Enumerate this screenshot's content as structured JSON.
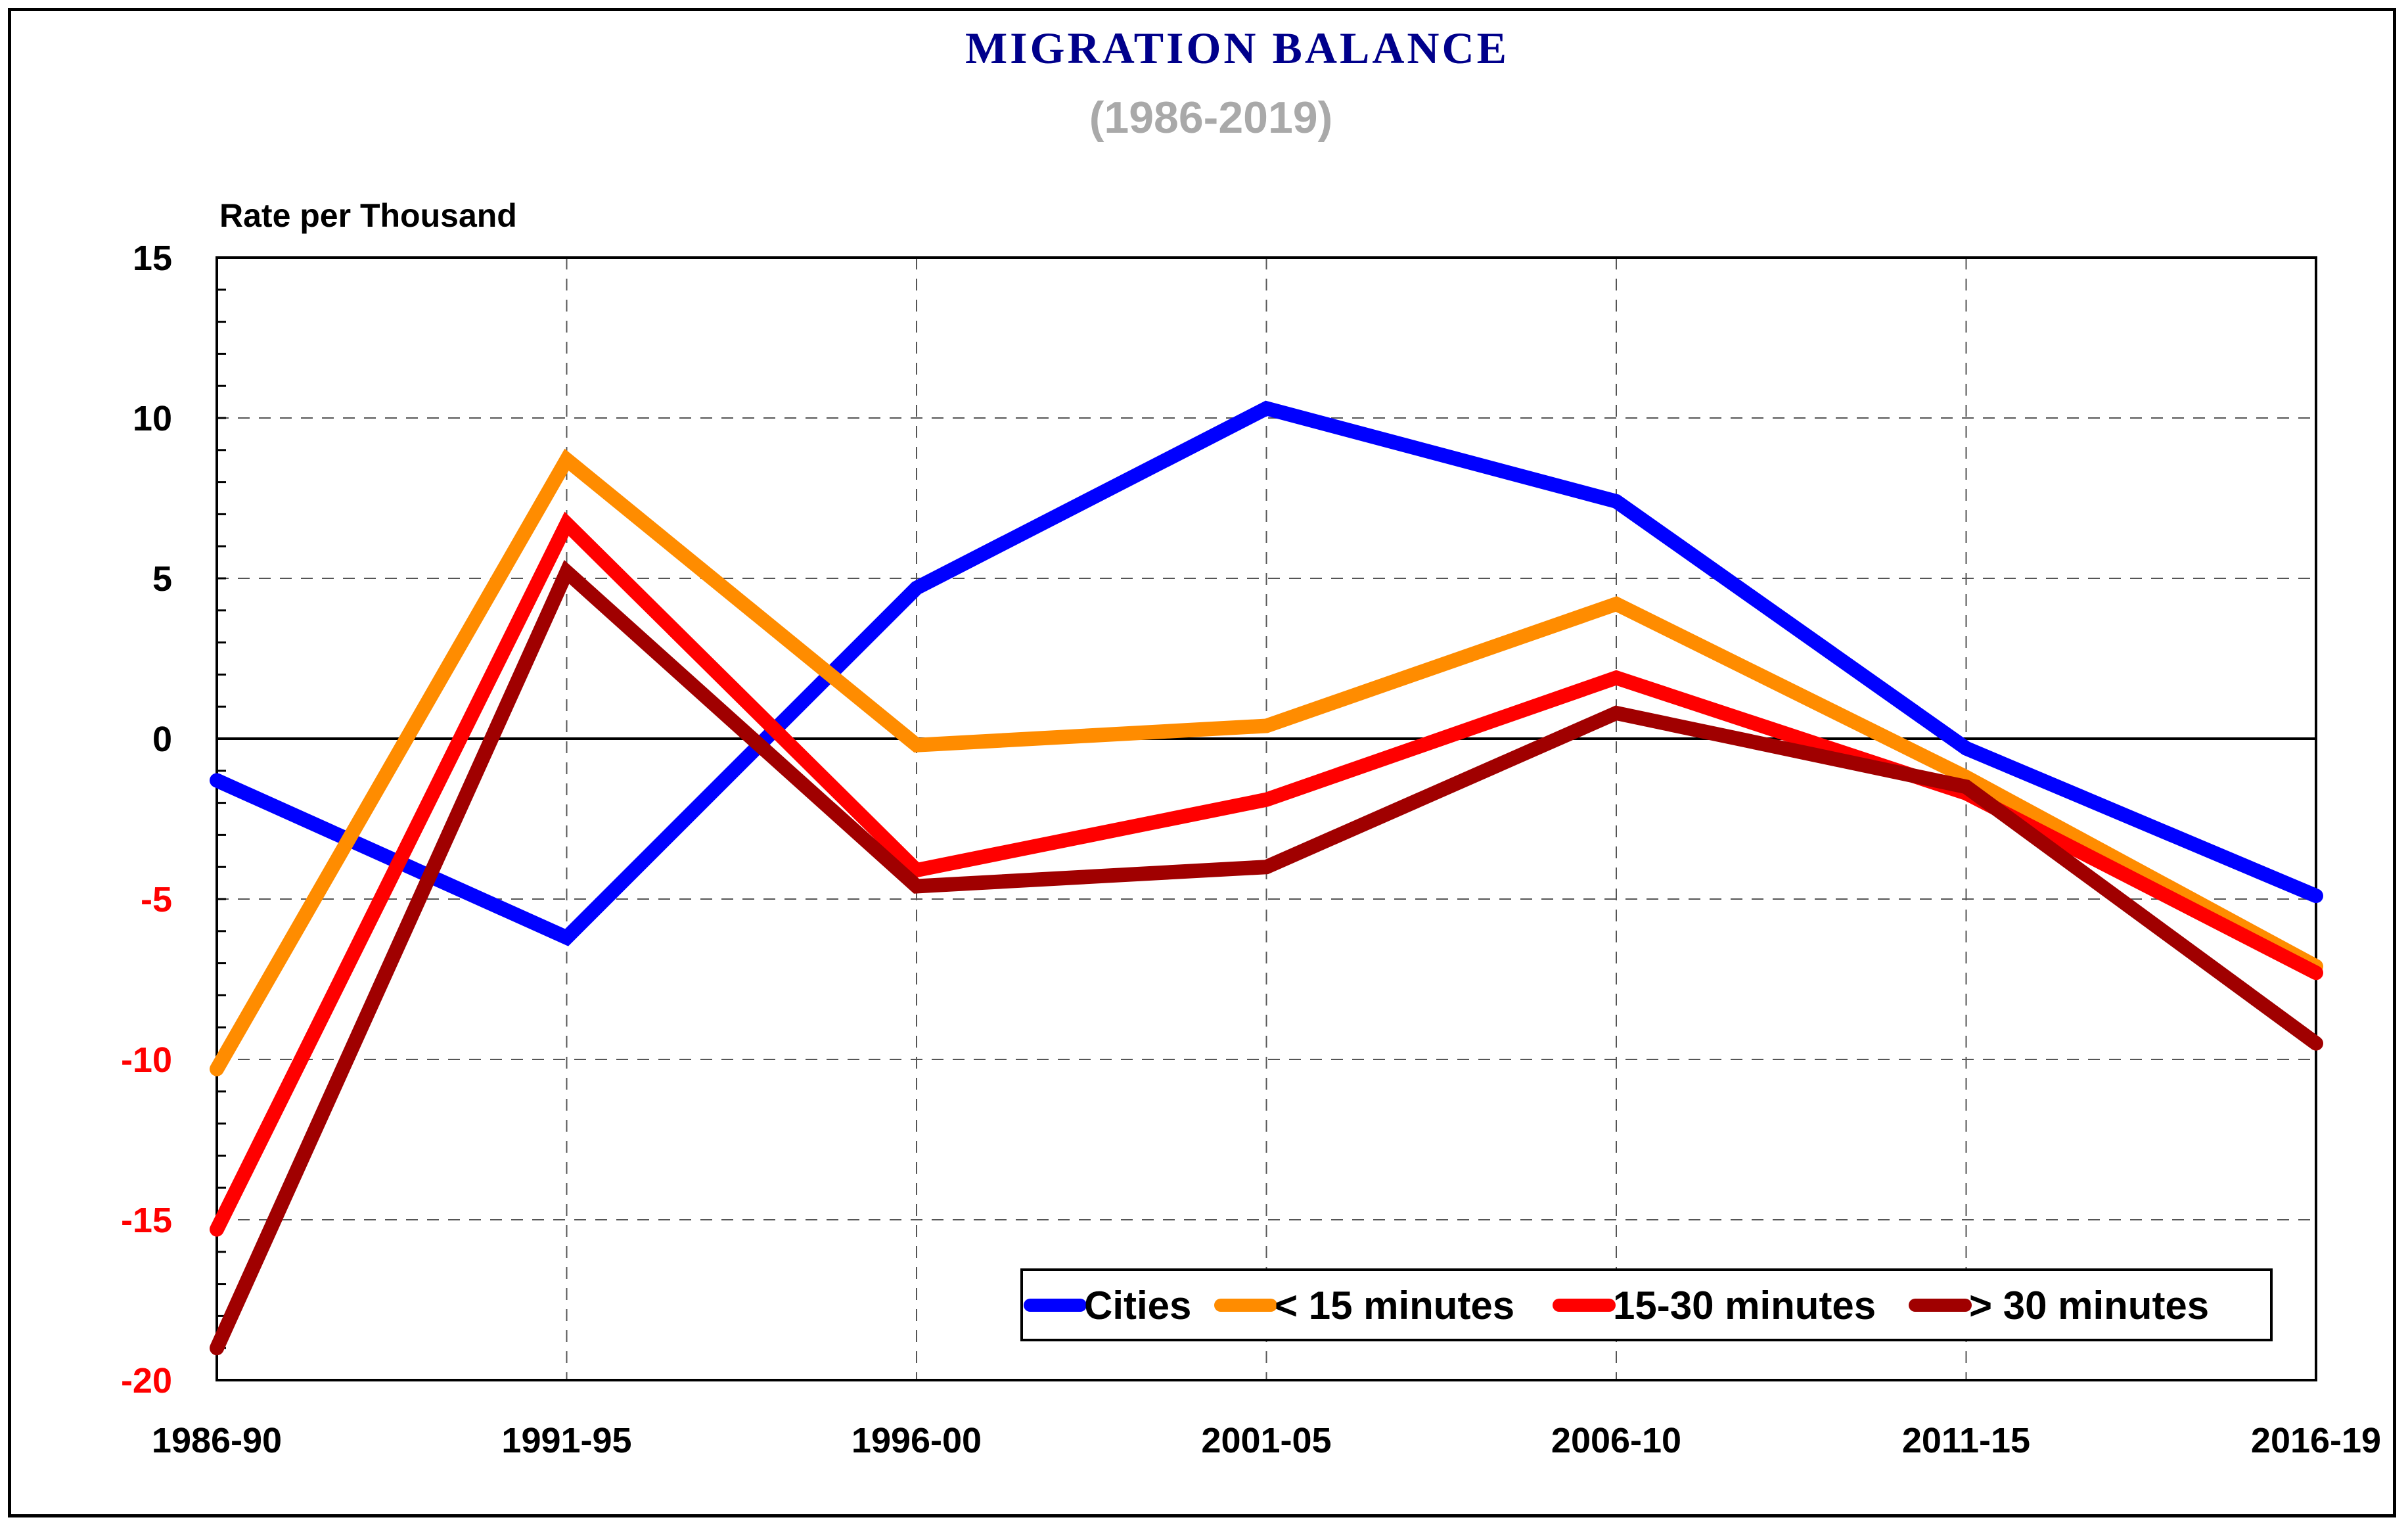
{
  "chart_data": {
    "type": "line",
    "title": "MIGRATION BALANCE",
    "subtitle": "(1986-2019)",
    "ylabel": "Rate per Thousand",
    "xlabel": "",
    "categories": [
      "1986-90",
      "1991-95",
      "1996-00",
      "2001-05",
      "2006-10",
      "2011-15",
      "2016-19"
    ],
    "ylim": [
      -20,
      15
    ],
    "yticks": [
      {
        "value": 15,
        "label": "15"
      },
      {
        "value": 10,
        "label": "10"
      },
      {
        "value": 5,
        "label": "5"
      },
      {
        "value": 0,
        "label": "0"
      },
      {
        "value": -5,
        "label": "-5"
      },
      {
        "value": -10,
        "label": "-10"
      },
      {
        "value": -15,
        "label": "-15"
      },
      {
        "value": -20,
        "label": "-20"
      }
    ],
    "grid": true,
    "legend_position": "bottom-right",
    "series": [
      {
        "name": "Cities",
        "color": "#0000ff",
        "values": [
          -1.3,
          -6.2,
          4.7,
          10.3,
          7.4,
          -0.3,
          -4.9
        ]
      },
      {
        "name": "< 15 minutes",
        "color": "#ff8c00",
        "values": [
          -10.3,
          8.7,
          -0.2,
          0.4,
          4.2,
          -1.2,
          -7.1
        ]
      },
      {
        "name": "15-30 minutes",
        "color": "#ff0000",
        "values": [
          -15.3,
          6.7,
          -4.1,
          -1.9,
          1.9,
          -1.7,
          -7.3
        ]
      },
      {
        "name": "> 30 minutes",
        "color": "#a00000",
        "values": [
          -19.0,
          5.2,
          -4.6,
          -4.0,
          0.8,
          -1.5,
          -9.5
        ]
      }
    ],
    "colors": {
      "title": "#00008b",
      "subtitle": "#a9a9a9",
      "positive_tick": "#000000",
      "negative_tick": "#ff0000"
    }
  }
}
